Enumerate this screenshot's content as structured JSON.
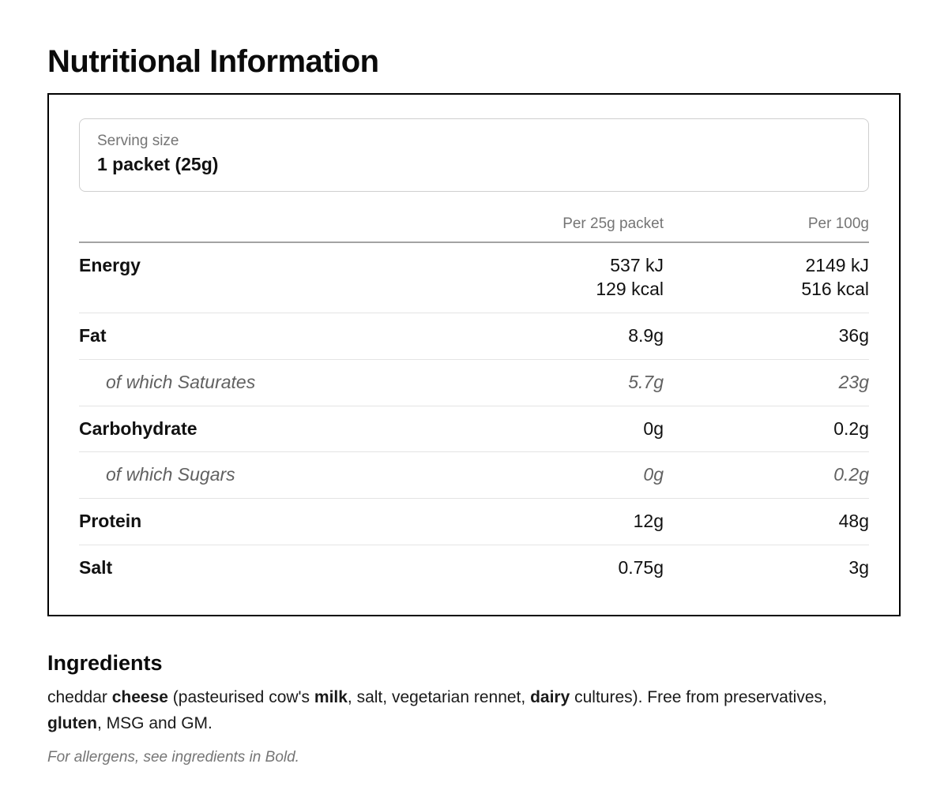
{
  "page": {
    "title": "Nutritional Information"
  },
  "panel": {
    "serving": {
      "label": "Serving size",
      "value": "1 packet (25g)"
    },
    "columns": [
      "Per 25g packet",
      "Per 100g"
    ],
    "rows": [
      {
        "label": "Energy",
        "style": "bold",
        "per_serving": [
          "537 kJ",
          "129 kcal"
        ],
        "per_100g": [
          "2149 kJ",
          "516 kcal"
        ]
      },
      {
        "label": "Fat",
        "style": "bold",
        "per_serving": "8.9g",
        "per_100g": "36g"
      },
      {
        "label": "of which Saturates",
        "style": "sub",
        "per_serving": "5.7g",
        "per_100g": "23g"
      },
      {
        "label": "Carbohydrate",
        "style": "bold",
        "per_serving": "0g",
        "per_100g": "0.2g"
      },
      {
        "label": "of which Sugars",
        "style": "sub",
        "per_serving": "0g",
        "per_100g": "0.2g"
      },
      {
        "label": "Protein",
        "style": "bold",
        "per_serving": "12g",
        "per_100g": "48g"
      },
      {
        "label": "Salt",
        "style": "bold",
        "per_serving": "0.75g",
        "per_100g": "3g"
      }
    ]
  },
  "ingredients": {
    "heading": "Ingredients",
    "segments": [
      {
        "text": "cheddar ",
        "bold": false
      },
      {
        "text": "cheese",
        "bold": true
      },
      {
        "text": " (pasteurised cow's ",
        "bold": false
      },
      {
        "text": "milk",
        "bold": true
      },
      {
        "text": ", salt, vegetarian rennet, ",
        "bold": false
      },
      {
        "text": "dairy",
        "bold": true
      },
      {
        "text": " cultures). Free from preservatives, ",
        "bold": false
      },
      {
        "text": "gluten",
        "bold": true
      },
      {
        "text": ", MSG and GM.",
        "bold": false
      }
    ],
    "allergen_note": "For allergens, see ingredients in Bold."
  },
  "colors": {
    "text": "#1a1a1a",
    "muted_text": "#757575",
    "sub_row_text": "#616161",
    "panel_border": "#000000",
    "serving_box_border": "#cfcfcf",
    "header_divider": "#a3a3a3",
    "row_divider": "#e4e4e4",
    "background": "#ffffff"
  }
}
